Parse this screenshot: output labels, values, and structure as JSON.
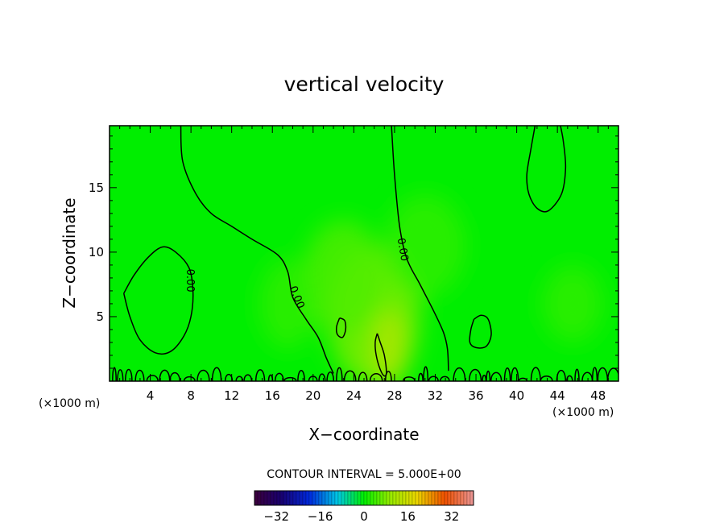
{
  "chart_data": {
    "type": "contour",
    "title": "vertical velocity",
    "xlabel": "X−coordinate",
    "ylabel": "Z−coordinate",
    "x_unit": "(×1000 m)",
    "xlim": [
      0,
      50
    ],
    "ylim": [
      0,
      19.8
    ],
    "x_ticks": [
      4,
      8,
      12,
      16,
      20,
      24,
      28,
      32,
      36,
      40,
      44,
      48
    ],
    "y_ticks": [
      5,
      10,
      15
    ],
    "contour_label": "0.00",
    "contour_interval_text": "CONTOUR INTERVAL = 5.000E+00",
    "colorbar": {
      "min": -40,
      "max": 40,
      "tick_values": [
        -32,
        -16,
        0,
        16,
        32
      ],
      "tick_labels": [
        "−32",
        "−16",
        "0",
        "16",
        "32"
      ]
    },
    "zero_contours": [
      {
        "name": "left-loop",
        "points": [
          [
            1.4,
            6.8
          ],
          [
            2,
            5
          ],
          [
            3,
            3.2
          ],
          [
            4.5,
            2.2
          ],
          [
            6,
            2.3
          ],
          [
            7.3,
            3.5
          ],
          [
            8,
            5
          ],
          [
            8.2,
            7
          ],
          [
            7.8,
            8.8
          ],
          [
            6.5,
            10
          ],
          [
            5.2,
            10.4
          ],
          [
            3.8,
            9.6
          ],
          [
            2.4,
            8.2
          ],
          [
            1.4,
            6.8
          ]
        ]
      },
      {
        "name": "left-ridge",
        "points": [
          [
            7,
            19.8
          ],
          [
            7.2,
            17
          ],
          [
            8.5,
            14.5
          ],
          [
            10,
            13
          ],
          [
            12,
            12
          ],
          [
            14,
            11
          ],
          [
            16.5,
            9.8
          ],
          [
            17.5,
            8.5
          ],
          [
            18,
            6.5
          ],
          [
            19.3,
            4.8
          ],
          [
            20.5,
            3.4
          ],
          [
            21.3,
            1.8
          ],
          [
            22,
            0.6
          ]
        ]
      },
      {
        "name": "center-right-line",
        "points": [
          [
            27.7,
            19.8
          ],
          [
            28,
            16
          ],
          [
            28.5,
            12
          ],
          [
            29.2,
            9.5
          ],
          [
            30.5,
            7.5
          ],
          [
            31.8,
            5.5
          ],
          [
            32.8,
            3.8
          ],
          [
            33.2,
            2.5
          ],
          [
            33.3,
            0.8
          ]
        ]
      },
      {
        "name": "center-small-loop",
        "points": [
          [
            22.6,
            4.9
          ],
          [
            22.3,
            4.2
          ],
          [
            22.4,
            3.6
          ],
          [
            22.9,
            3.4
          ],
          [
            23.2,
            4
          ],
          [
            23.1,
            4.7
          ],
          [
            22.6,
            4.9
          ]
        ]
      },
      {
        "name": "spire-loop",
        "points": [
          [
            26.3,
            3.7
          ],
          [
            26.6,
            3
          ],
          [
            27,
            2
          ],
          [
            27.2,
            0.7
          ],
          [
            27,
            0.4
          ],
          [
            26.6,
            0.9
          ],
          [
            26.2,
            2
          ],
          [
            26.1,
            3
          ],
          [
            26.3,
            3.7
          ]
        ]
      },
      {
        "name": "right-small-loop",
        "points": [
          [
            35.8,
            4.8
          ],
          [
            35.5,
            4
          ],
          [
            35.4,
            3
          ],
          [
            36,
            2.6
          ],
          [
            37,
            2.7
          ],
          [
            37.5,
            3.6
          ],
          [
            37.2,
            4.8
          ],
          [
            36.5,
            5.1
          ],
          [
            35.8,
            4.8
          ]
        ]
      },
      {
        "name": "top-right-loop",
        "points": [
          [
            41.8,
            19.8
          ],
          [
            41.4,
            18
          ],
          [
            41,
            16
          ],
          [
            41.2,
            14.5
          ],
          [
            42,
            13.4
          ],
          [
            43.1,
            13.2
          ],
          [
            44.4,
            14.5
          ],
          [
            44.8,
            16.5
          ],
          [
            44.6,
            18.5
          ],
          [
            44.3,
            19.8
          ]
        ]
      }
    ],
    "contour_labels": [
      {
        "text": "0.00",
        "x": 7.9,
        "y": 7.8,
        "angle": 90
      },
      {
        "text": "0.00",
        "x": 18.4,
        "y": 6.5,
        "angle": 68
      },
      {
        "text": "0.00",
        "x": 28.8,
        "y": 10.2,
        "angle": 80
      }
    ],
    "warm_blobs": [
      {
        "x": 26.0,
        "y": 5.0,
        "rx": 4.5,
        "ry": 5.5,
        "value": 8
      },
      {
        "x": 23.0,
        "y": 8.0,
        "rx": 4.0,
        "ry": 4.5,
        "value": 5
      },
      {
        "x": 27.5,
        "y": 2.5,
        "rx": 1.8,
        "ry": 3.0,
        "value": 12
      },
      {
        "x": 31.0,
        "y": 10.5,
        "rx": 4.0,
        "ry": 4.0,
        "value": 3
      },
      {
        "x": 17.5,
        "y": 6.0,
        "rx": 2.8,
        "ry": 3.5,
        "value": 3
      },
      {
        "x": 45.5,
        "y": 6.0,
        "rx": 3.0,
        "ry": 3.0,
        "value": 3
      }
    ]
  }
}
